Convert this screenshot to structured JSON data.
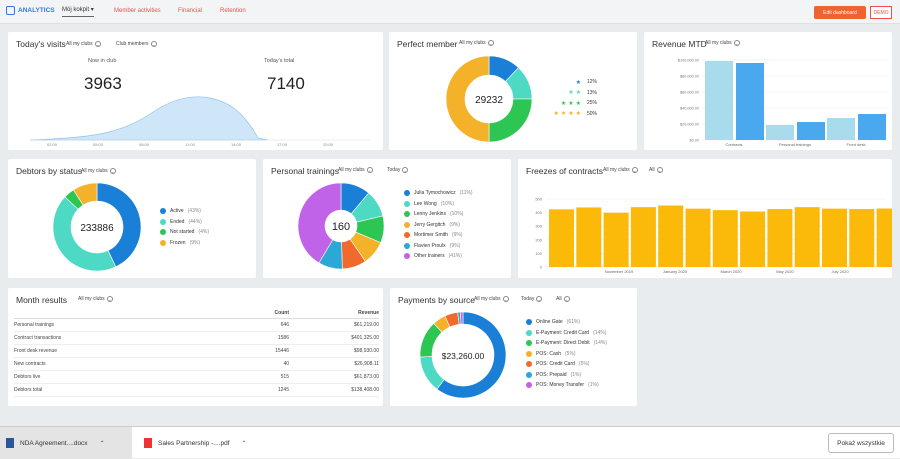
{
  "nav": {
    "brand": "ANALYTICS",
    "dashboard": "Mój kokpit",
    "tabs": [
      "Member activities",
      "Financial",
      "Retention"
    ],
    "edit": "Edit dashboard",
    "demo": "DEMO"
  },
  "visits": {
    "title": "Today's visits",
    "filter1": "All my clubs",
    "filter2": "Club members",
    "now_label": "Now in club",
    "now_value": "3963",
    "total_label": "Today's total",
    "total_value": "7140",
    "times": [
      "02:00",
      "05:00",
      "08:00",
      "11:00",
      "14:00",
      "17:00",
      "20:00"
    ]
  },
  "perfect": {
    "title": "Perfect member",
    "filter": "All my clubs",
    "center": "29232",
    "legend": [
      {
        "stars": 1,
        "pct": "12%"
      },
      {
        "stars": 2,
        "pct": "13%"
      },
      {
        "stars": 3,
        "pct": "25%"
      },
      {
        "stars": 4,
        "pct": "50%"
      }
    ],
    "colors": [
      "#1a7fd6",
      "#4dd9c4",
      "#2dc653",
      "#f4b12a"
    ]
  },
  "revenue": {
    "title": "Revenue MTD",
    "filter": "All my clubs",
    "yticks": [
      "$0.00",
      "$20,000.00",
      "$40,000.00",
      "$60,000.00",
      "$80,000.00",
      "$100,000.00"
    ],
    "xlabels": [
      "Contracts",
      "Personal trainings",
      "Front desk"
    ]
  },
  "debtors": {
    "title": "Debtors by status",
    "filter": "All my clubs",
    "center": "233886",
    "legend": [
      {
        "label": "Active",
        "pct": "(43%)",
        "color": "#1a7fd6"
      },
      {
        "label": "Ended",
        "pct": "(44%)",
        "color": "#4dd9c4"
      },
      {
        "label": "Not started",
        "pct": "(4%)",
        "color": "#2dc653"
      },
      {
        "label": "Frozen",
        "pct": "(9%)",
        "color": "#f4b12a"
      }
    ]
  },
  "trainings": {
    "title": "Personal trainings",
    "filter1": "All my clubs",
    "filter2": "Today",
    "center": "160",
    "legend": [
      {
        "label": "Julia Tymochowicz",
        "pct": "(11%)",
        "color": "#1a7fd6"
      },
      {
        "label": "Lee Wong",
        "pct": "(10%)",
        "color": "#4dd9c4"
      },
      {
        "label": "Lenny Jenkins",
        "pct": "(10%)",
        "color": "#2dc653"
      },
      {
        "label": "Jerry Gergitch",
        "pct": "(9%)",
        "color": "#f4b12a"
      },
      {
        "label": "Mortimer Smith",
        "pct": "(9%)",
        "color": "#f26a2b"
      },
      {
        "label": "Flavien Proulx",
        "pct": "(9%)",
        "color": "#2ba8d6"
      },
      {
        "label": "Other trainers",
        "pct": "(41%)",
        "color": "#c063e8"
      }
    ]
  },
  "freezes": {
    "title": "Freezes of contracts",
    "filter1": "All my clubs",
    "filter2": "All",
    "yticks": [
      "0",
      "100",
      "200",
      "300",
      "400",
      "500"
    ],
    "xlabels": [
      "November 2019",
      "January 2020",
      "March 2020",
      "May 2020",
      "July 2020"
    ]
  },
  "month": {
    "title": "Month results",
    "filter": "All my clubs",
    "headers": [
      "",
      "Count",
      "Revenue"
    ],
    "rows": [
      [
        "Personal trainings",
        "646",
        "$61,219.00"
      ],
      [
        "Contract transactions",
        "1586",
        "$401,325.00"
      ],
      [
        "Front desk revenue",
        "15446",
        "$98,930.00"
      ],
      [
        "New contracts",
        "40",
        "$26,908.11"
      ],
      [
        "Debtors live",
        "515",
        "$61,873.00"
      ],
      [
        "Debtors total",
        "1245",
        "$138,408.00"
      ]
    ]
  },
  "payments": {
    "title": "Payments by source",
    "filter1": "All my clubs",
    "filter2": "Today",
    "filter3": "All",
    "center": "$23,260.00",
    "legend": [
      {
        "label": "Online Gate",
        "pct": "(61%)",
        "color": "#1a7fd6"
      },
      {
        "label": "E-Payment: Credit Card",
        "pct": "(14%)",
        "color": "#4dd9c4"
      },
      {
        "label": "E-Payment: Direct Debit",
        "pct": "(14%)",
        "color": "#2dc653"
      },
      {
        "label": "POS: Cash",
        "pct": "(5%)",
        "color": "#f4b12a"
      },
      {
        "label": "POS: Credit Card",
        "pct": "(5%)",
        "color": "#f26a2b"
      },
      {
        "label": "POS: Prepaid",
        "pct": "(1%)",
        "color": "#2ba8d6"
      },
      {
        "label": "POS: Money Transfer",
        "pct": "(1%)",
        "color": "#c063e8"
      }
    ]
  },
  "downloads": {
    "items": [
      "NDA Agreement....docx",
      "Sales Partnership -....pdf"
    ],
    "show_all": "Pokaż wszystkie"
  }
}
